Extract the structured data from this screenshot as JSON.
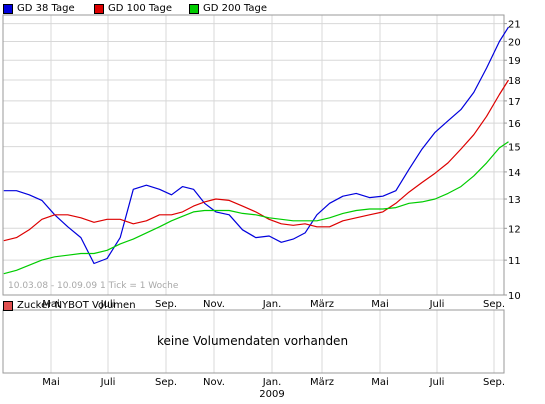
{
  "legend": {
    "items": [
      {
        "label": "GD 38 Tage",
        "color": "#0000dd"
      },
      {
        "label": "GD 100 Tage",
        "color": "#dd0000"
      },
      {
        "label": "GD 200 Tage",
        "color": "#00cc00"
      }
    ]
  },
  "volume_panel": {
    "legend_label": "Zucker NYBOT Volumen",
    "legend_color": "#e05050",
    "message": "keine Volumendaten vorhanden"
  },
  "range_note": "10.03.08 - 10.09.09   1 Tick = 1 Woche",
  "colors": {
    "grid": "#d8d8d8",
    "frame": "#9a9a9a"
  },
  "chart_data": {
    "type": "line",
    "y_scale": "log",
    "ylim": [
      10,
      21.5
    ],
    "y_ticks": [
      10,
      11,
      12,
      13,
      14,
      15,
      16,
      17,
      18,
      19,
      20,
      21
    ],
    "x_ticks": [
      "Mai",
      "Juli",
      "Sep.",
      "Nov.",
      "Jan.",
      "März",
      "Mai",
      "Juli",
      "Sep."
    ],
    "x_tick_year": {
      "tick": "Jan.",
      "label": "2009"
    },
    "x_range": [
      "2008-03-10",
      "2009-09-10"
    ],
    "grid": true,
    "legend_position": "top",
    "series": [
      {
        "name": "GD 38 Tage",
        "color": "#0000dd",
        "points": [
          [
            "2008-03-10",
            13.3
          ],
          [
            "2008-03-24",
            13.3
          ],
          [
            "2008-04-07",
            13.15
          ],
          [
            "2008-04-21",
            12.95
          ],
          [
            "2008-05-05",
            12.45
          ],
          [
            "2008-05-19",
            12.05
          ],
          [
            "2008-06-02",
            11.7
          ],
          [
            "2008-06-16",
            10.9
          ],
          [
            "2008-06-30",
            11.05
          ],
          [
            "2008-07-14",
            11.7
          ],
          [
            "2008-07-28",
            13.35
          ],
          [
            "2008-08-11",
            13.5
          ],
          [
            "2008-08-25",
            13.35
          ],
          [
            "2008-09-08",
            13.15
          ],
          [
            "2008-09-22",
            13.45
          ],
          [
            "2008-10-06",
            13.35
          ],
          [
            "2008-10-20",
            12.85
          ],
          [
            "2008-11-03",
            12.55
          ],
          [
            "2008-11-17",
            12.45
          ],
          [
            "2008-12-01",
            11.95
          ],
          [
            "2008-12-15",
            11.7
          ],
          [
            "2008-12-29",
            11.75
          ],
          [
            "2009-01-12",
            11.55
          ],
          [
            "2009-01-26",
            11.65
          ],
          [
            "2009-02-09",
            11.85
          ],
          [
            "2009-02-23",
            12.45
          ],
          [
            "2009-03-09",
            12.85
          ],
          [
            "2009-03-23",
            13.1
          ],
          [
            "2009-04-06",
            13.2
          ],
          [
            "2009-04-20",
            13.05
          ],
          [
            "2009-05-04",
            13.1
          ],
          [
            "2009-05-18",
            13.3
          ],
          [
            "2009-06-01",
            14.1
          ],
          [
            "2009-06-15",
            14.9
          ],
          [
            "2009-06-29",
            15.6
          ],
          [
            "2009-07-13",
            16.1
          ],
          [
            "2009-07-27",
            16.6
          ],
          [
            "2009-08-10",
            17.4
          ],
          [
            "2009-08-24",
            18.6
          ],
          [
            "2009-09-07",
            20.0
          ],
          [
            "2009-09-17",
            20.8
          ]
        ]
      },
      {
        "name": "GD 100 Tage",
        "color": "#dd0000",
        "points": [
          [
            "2008-03-10",
            11.6
          ],
          [
            "2008-03-24",
            11.7
          ],
          [
            "2008-04-07",
            11.95
          ],
          [
            "2008-04-21",
            12.3
          ],
          [
            "2008-05-05",
            12.45
          ],
          [
            "2008-05-19",
            12.45
          ],
          [
            "2008-06-02",
            12.35
          ],
          [
            "2008-06-16",
            12.2
          ],
          [
            "2008-06-30",
            12.3
          ],
          [
            "2008-07-14",
            12.3
          ],
          [
            "2008-07-28",
            12.15
          ],
          [
            "2008-08-11",
            12.25
          ],
          [
            "2008-08-25",
            12.45
          ],
          [
            "2008-09-08",
            12.45
          ],
          [
            "2008-09-22",
            12.55
          ],
          [
            "2008-10-06",
            12.75
          ],
          [
            "2008-10-20",
            12.9
          ],
          [
            "2008-11-03",
            13.0
          ],
          [
            "2008-11-17",
            12.95
          ],
          [
            "2008-12-01",
            12.75
          ],
          [
            "2008-12-15",
            12.55
          ],
          [
            "2008-12-29",
            12.3
          ],
          [
            "2009-01-12",
            12.15
          ],
          [
            "2009-01-26",
            12.1
          ],
          [
            "2009-02-09",
            12.15
          ],
          [
            "2009-02-23",
            12.05
          ],
          [
            "2009-03-09",
            12.05
          ],
          [
            "2009-03-23",
            12.25
          ],
          [
            "2009-04-06",
            12.35
          ],
          [
            "2009-04-20",
            12.45
          ],
          [
            "2009-05-04",
            12.55
          ],
          [
            "2009-05-18",
            12.85
          ],
          [
            "2009-06-01",
            13.25
          ],
          [
            "2009-06-15",
            13.6
          ],
          [
            "2009-06-29",
            13.95
          ],
          [
            "2009-07-13",
            14.35
          ],
          [
            "2009-07-27",
            14.9
          ],
          [
            "2009-08-10",
            15.5
          ],
          [
            "2009-08-24",
            16.3
          ],
          [
            "2009-09-07",
            17.3
          ],
          [
            "2009-09-17",
            18.0
          ]
        ]
      },
      {
        "name": "GD 200 Tage",
        "color": "#00cc00",
        "points": [
          [
            "2008-03-10",
            10.6
          ],
          [
            "2008-03-24",
            10.7
          ],
          [
            "2008-04-07",
            10.85
          ],
          [
            "2008-04-21",
            11.0
          ],
          [
            "2008-05-05",
            11.1
          ],
          [
            "2008-05-19",
            11.15
          ],
          [
            "2008-06-02",
            11.2
          ],
          [
            "2008-06-16",
            11.2
          ],
          [
            "2008-06-30",
            11.3
          ],
          [
            "2008-07-14",
            11.5
          ],
          [
            "2008-07-28",
            11.65
          ],
          [
            "2008-08-11",
            11.85
          ],
          [
            "2008-08-25",
            12.05
          ],
          [
            "2008-09-08",
            12.25
          ],
          [
            "2008-09-22",
            12.4
          ],
          [
            "2008-10-06",
            12.55
          ],
          [
            "2008-10-20",
            12.6
          ],
          [
            "2008-11-03",
            12.6
          ],
          [
            "2008-11-17",
            12.6
          ],
          [
            "2008-12-01",
            12.5
          ],
          [
            "2008-12-15",
            12.45
          ],
          [
            "2008-12-29",
            12.35
          ],
          [
            "2009-01-12",
            12.3
          ],
          [
            "2009-01-26",
            12.25
          ],
          [
            "2009-02-09",
            12.25
          ],
          [
            "2009-02-23",
            12.25
          ],
          [
            "2009-03-09",
            12.35
          ],
          [
            "2009-03-23",
            12.5
          ],
          [
            "2009-04-06",
            12.6
          ],
          [
            "2009-04-20",
            12.65
          ],
          [
            "2009-05-04",
            12.65
          ],
          [
            "2009-05-18",
            12.7
          ],
          [
            "2009-06-01",
            12.85
          ],
          [
            "2009-06-15",
            12.9
          ],
          [
            "2009-06-29",
            13.0
          ],
          [
            "2009-07-13",
            13.2
          ],
          [
            "2009-07-27",
            13.45
          ],
          [
            "2009-08-10",
            13.85
          ],
          [
            "2009-08-24",
            14.35
          ],
          [
            "2009-09-07",
            14.95
          ],
          [
            "2009-09-17",
            15.2
          ]
        ]
      }
    ]
  }
}
